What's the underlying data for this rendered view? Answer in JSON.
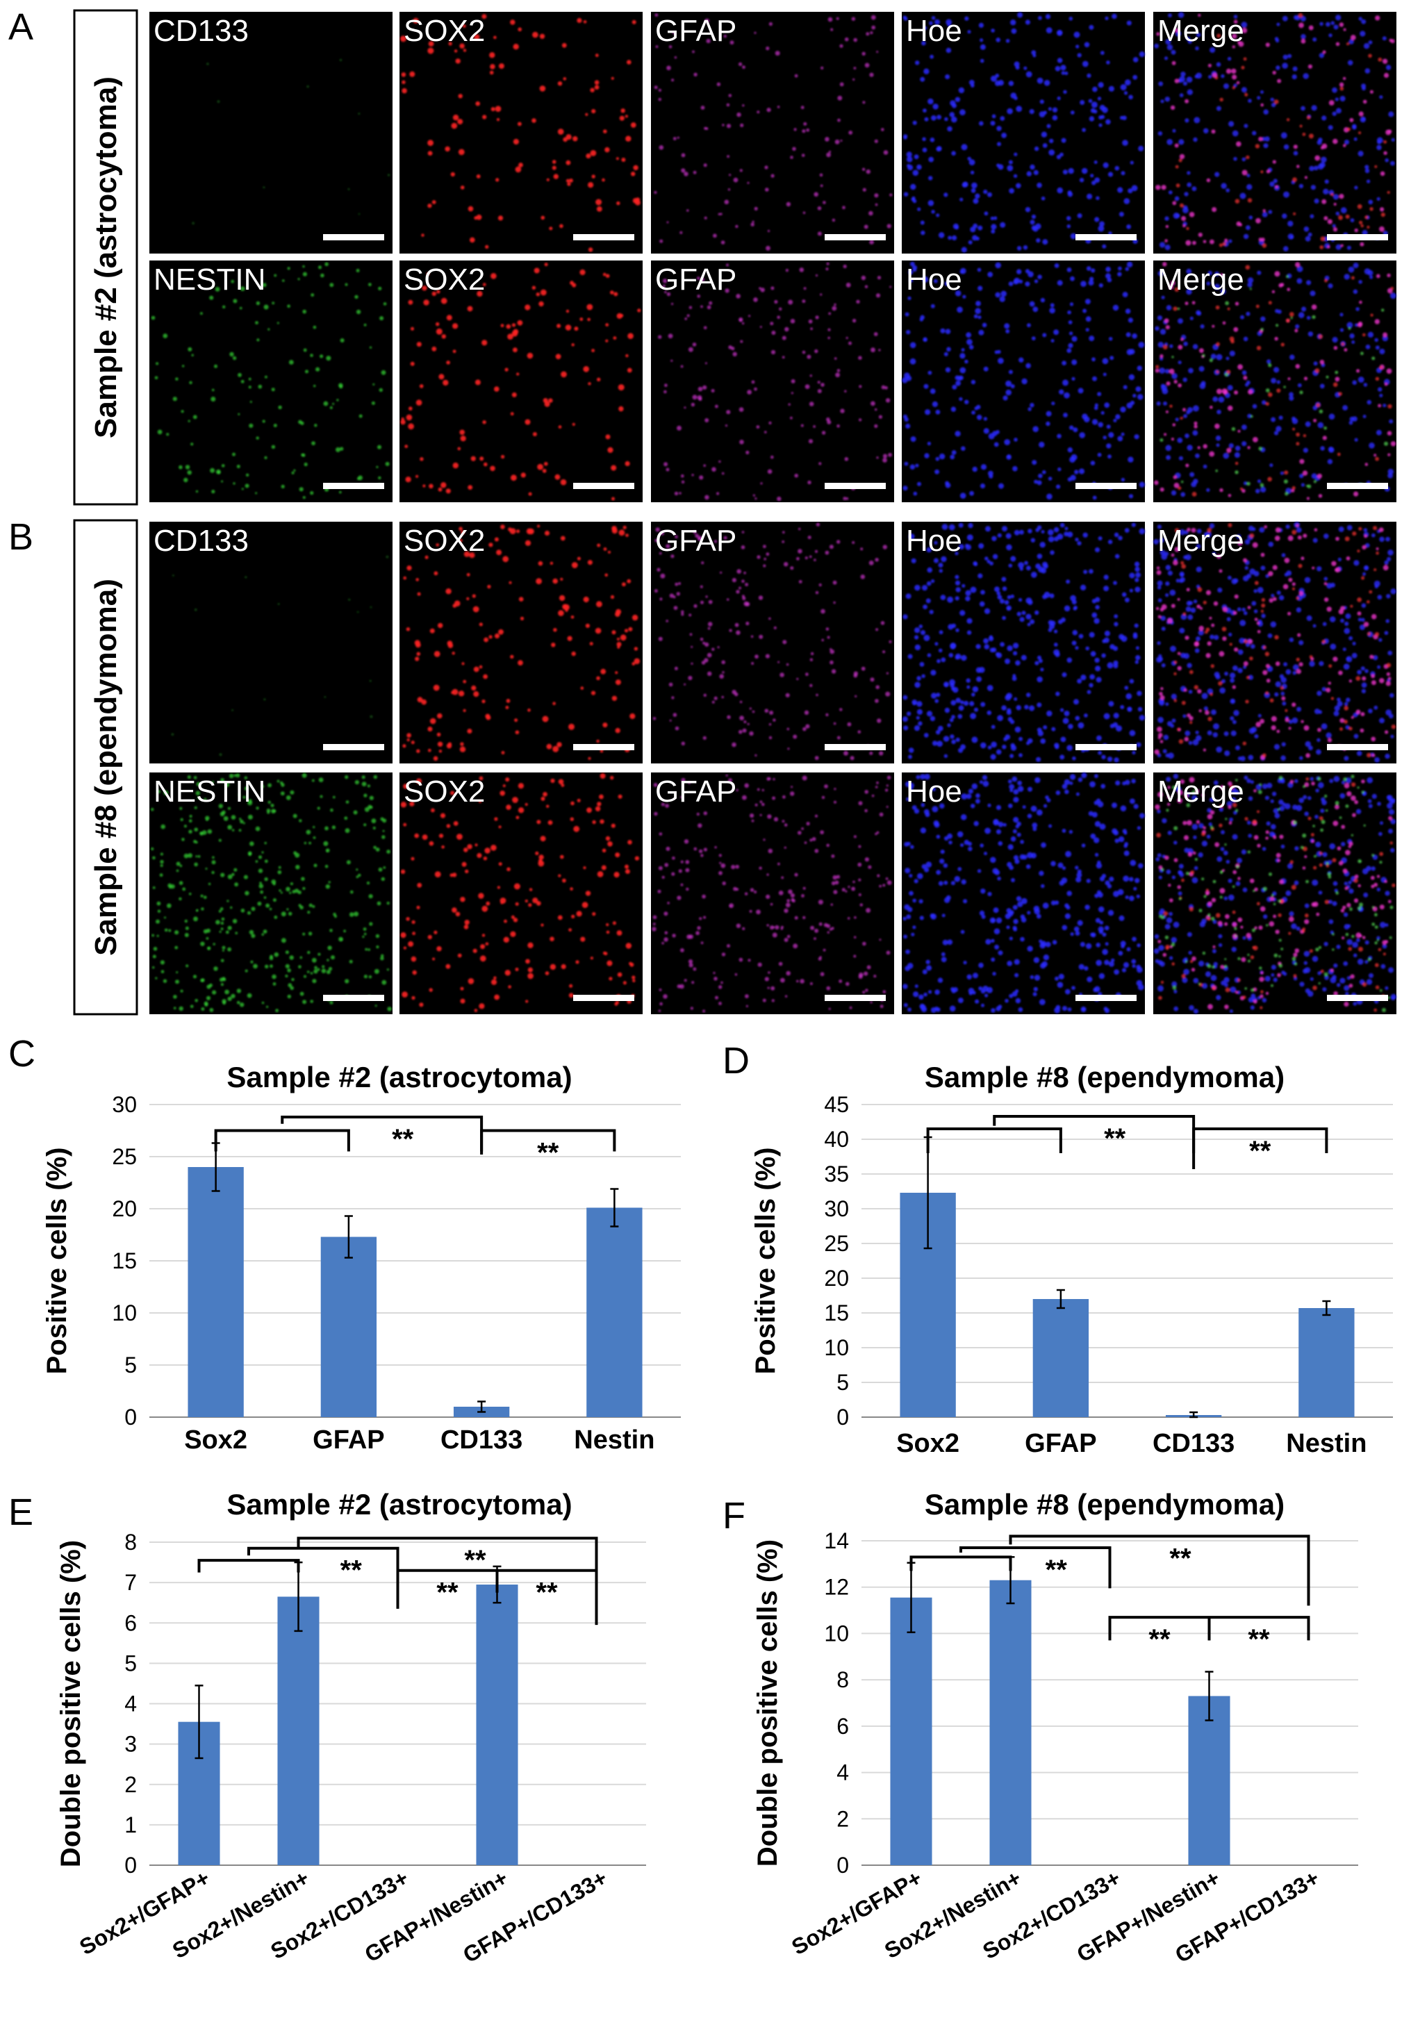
{
  "microscopy": {
    "panels": [
      {
        "letter": "A",
        "sample_label": "Sample #2 (astrocytoma)",
        "rows": [
          [
            "CD133",
            "SOX2",
            "GFAP",
            "Hoe",
            "Merge"
          ],
          [
            "NESTIN",
            "SOX2",
            "GFAP",
            "Hoe",
            "Merge"
          ]
        ]
      },
      {
        "letter": "B",
        "sample_label": "Sample #8 (ependymoma)",
        "rows": [
          [
            "CD133",
            "SOX2",
            "GFAP",
            "Hoe",
            "Merge"
          ],
          [
            "NESTIN",
            "SOX2",
            "GFAP",
            "Hoe",
            "Merge"
          ]
        ]
      }
    ]
  },
  "chart_data": [
    {
      "letter": "C",
      "type": "bar",
      "title": "Sample #2 (astrocytoma)",
      "ylabel": "Positive cells (%)",
      "categories": [
        "Sox2",
        "GFAP",
        "CD133",
        "Nestin"
      ],
      "values": [
        24.0,
        17.3,
        1.0,
        20.1
      ],
      "errors": [
        2.3,
        2.0,
        0.5,
        1.8
      ],
      "ylim": [
        0,
        30
      ],
      "yticks": [
        0,
        5,
        10,
        15,
        20,
        25,
        30
      ],
      "significance": [
        "**",
        "**"
      ],
      "grid": true
    },
    {
      "letter": "D",
      "type": "bar",
      "title": "Sample #8 (ependymoma)",
      "ylabel": "Positive cells (%)",
      "categories": [
        "Sox2",
        "GFAP",
        "CD133",
        "Nestin"
      ],
      "values": [
        32.3,
        17.0,
        0.3,
        15.7
      ],
      "errors": [
        8.0,
        1.3,
        0.4,
        1.0
      ],
      "ylim": [
        0,
        45
      ],
      "yticks": [
        0,
        5,
        10,
        15,
        20,
        25,
        30,
        35,
        40,
        45
      ],
      "significance": [
        "**",
        "**"
      ],
      "grid": true
    },
    {
      "letter": "E",
      "type": "bar",
      "title": "Sample #2 (astrocytoma)",
      "ylabel": "Double positive cells (%)",
      "categories": [
        "Sox2+/GFAP+",
        "Sox2+/Nestin+",
        "Sox2+/CD133+",
        "GFAP+/Nestin+",
        "GFAP+/CD133+"
      ],
      "values": [
        3.55,
        6.65,
        0,
        6.95,
        0
      ],
      "errors": [
        0.9,
        0.85,
        0,
        0.45,
        0
      ],
      "ylim": [
        0,
        8
      ],
      "yticks": [
        0,
        1,
        2,
        3,
        4,
        5,
        6,
        7,
        8
      ],
      "significance": [
        "**",
        "**",
        "**",
        "**"
      ],
      "grid": true
    },
    {
      "letter": "F",
      "type": "bar",
      "title": "Sample #8 (ependymoma)",
      "ylabel": "Double positive cells (%)",
      "categories": [
        "Sox2+/GFAP+",
        "Sox2+/Nestin+",
        "Sox2+/CD133+",
        "GFAP+/Nestin+",
        "GFAP+/CD133+"
      ],
      "values": [
        11.55,
        12.3,
        0,
        7.3,
        0
      ],
      "errors": [
        1.5,
        1.0,
        0,
        1.05,
        0
      ],
      "ylim": [
        0,
        14
      ],
      "yticks": [
        0,
        2,
        4,
        6,
        8,
        10,
        12,
        14
      ],
      "significance": [
        "**",
        "**",
        "**",
        "**"
      ],
      "grid": true
    }
  ]
}
